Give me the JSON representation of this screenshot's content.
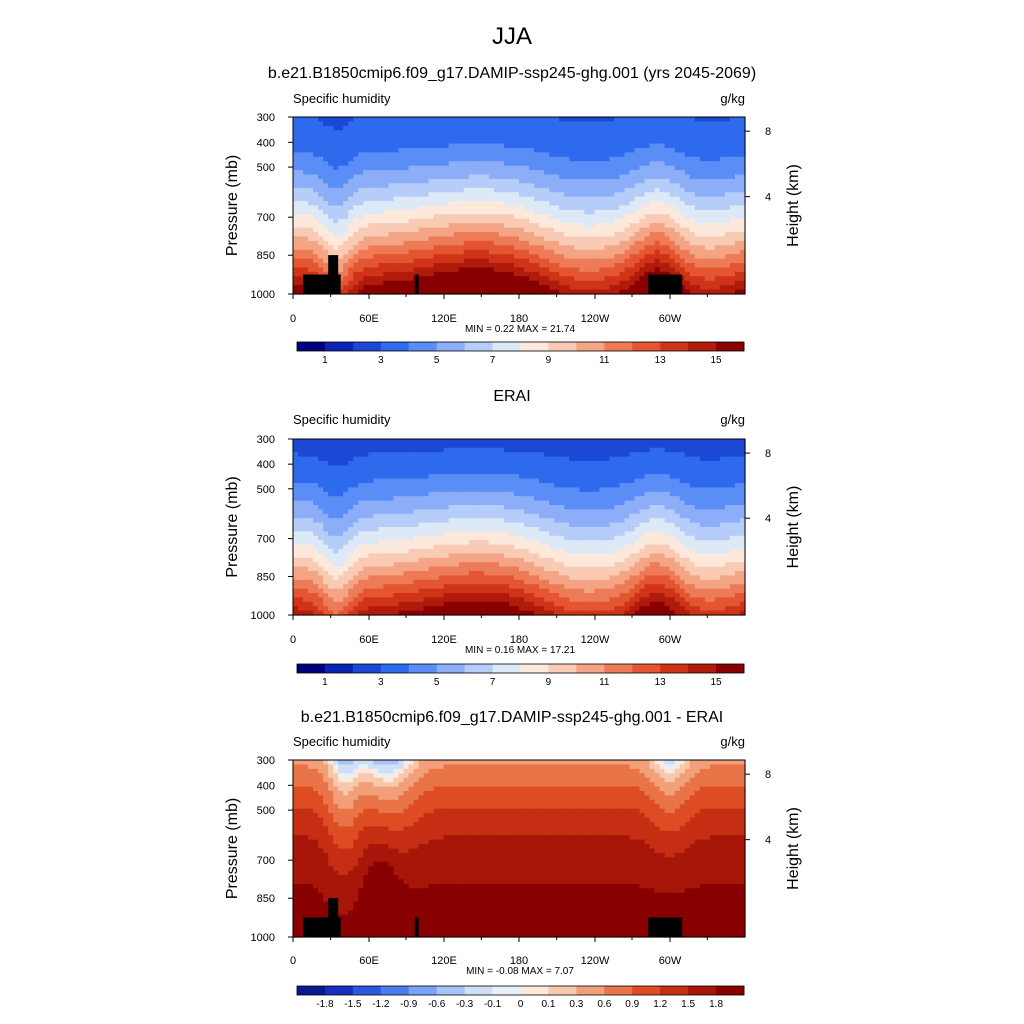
{
  "page_title": "JJA",
  "cbar_a_labels": [
    "1",
    "3",
    "5",
    "7",
    "9",
    "11",
    "13",
    "15"
  ],
  "cbar_b_labels": [
    "-1.8",
    "-1.5",
    "-1.2",
    "-0.9",
    "-0.6",
    "-0.3",
    "-0.1",
    "0",
    "0.1",
    "0.3",
    "0.6",
    "0.9",
    "1.2",
    "1.5",
    "1.8"
  ],
  "colors": {
    "seq16": [
      "#00007f",
      "#0a23b4",
      "#1c48d6",
      "#2e6aee",
      "#5a8ef6",
      "#8caef9",
      "#b5cdf8",
      "#dde9f7",
      "#fde9dc",
      "#f9cbb4",
      "#f4a585",
      "#ee7b57",
      "#e45531",
      "#cf3418",
      "#b01b0b",
      "#880000"
    ],
    "div16": [
      "#0a1890",
      "#1530c0",
      "#2c58e0",
      "#4a7ef0",
      "#7aa2f7",
      "#a7c3f7",
      "#cfdff6",
      "#eaf0f8",
      "#fde8da",
      "#f8c8ad",
      "#f2a07a",
      "#e97448",
      "#de4c24",
      "#c52e12",
      "#a71608",
      "#880000"
    ],
    "land": "#000000"
  },
  "chart_data": [
    {
      "type": "heatmap",
      "title": "b.e21.B1850cmip6.f09_g17.DAMIP-ssp245-ghg.001 (yrs 2045-2069)",
      "left_label": "Specific humidity",
      "right_label": "g/kg",
      "ylabel": "Pressure (mb)",
      "y2label": "Height (km)",
      "x_ticks": [
        "0",
        "60E",
        "120E",
        "180",
        "120W",
        "60W"
      ],
      "y_ticks": [
        "300",
        "400",
        "500",
        "700",
        "850",
        "1000"
      ],
      "y2_ticks": [
        "8",
        "4"
      ],
      "stats": "MIN =   0.22  MAX =  21.74",
      "levels": [
        1,
        2,
        3,
        4,
        5,
        6,
        7,
        8,
        9,
        10,
        11,
        12,
        13,
        14,
        15
      ],
      "min": 0.22,
      "max": 21.74
    },
    {
      "type": "heatmap",
      "title": "ERAI",
      "left_label": "Specific humidity",
      "right_label": "g/kg",
      "ylabel": "Pressure (mb)",
      "y2label": "Height (km)",
      "x_ticks": [
        "0",
        "60E",
        "120E",
        "180",
        "120W",
        "60W"
      ],
      "y_ticks": [
        "300",
        "400",
        "500",
        "700",
        "850",
        "1000"
      ],
      "y2_ticks": [
        "8",
        "4"
      ],
      "stats": "MIN =   0.16  MAX =  17.21",
      "levels": [
        1,
        2,
        3,
        4,
        5,
        6,
        7,
        8,
        9,
        10,
        11,
        12,
        13,
        14,
        15
      ],
      "min": 0.16,
      "max": 17.21
    },
    {
      "type": "heatmap",
      "title": "b.e21.B1850cmip6.f09_g17.DAMIP-ssp245-ghg.001 - ERAI",
      "left_label": "Specific humidity",
      "right_label": "g/kg",
      "ylabel": "Pressure (mb)",
      "y2label": "Height (km)",
      "x_ticks": [
        "0",
        "60E",
        "120E",
        "180",
        "120W",
        "60W"
      ],
      "y_ticks": [
        "300",
        "400",
        "500",
        "700",
        "850",
        "1000"
      ],
      "y2_ticks": [
        "8",
        "4"
      ],
      "stats": "MIN =  -0.08  MAX =   7.07",
      "levels": [
        -1.8,
        -1.5,
        -1.2,
        -0.9,
        -0.6,
        -0.3,
        -0.1,
        0,
        0.1,
        0.3,
        0.6,
        0.9,
        1.2,
        1.5,
        1.8
      ],
      "min": -0.08,
      "max": 7.07
    }
  ]
}
